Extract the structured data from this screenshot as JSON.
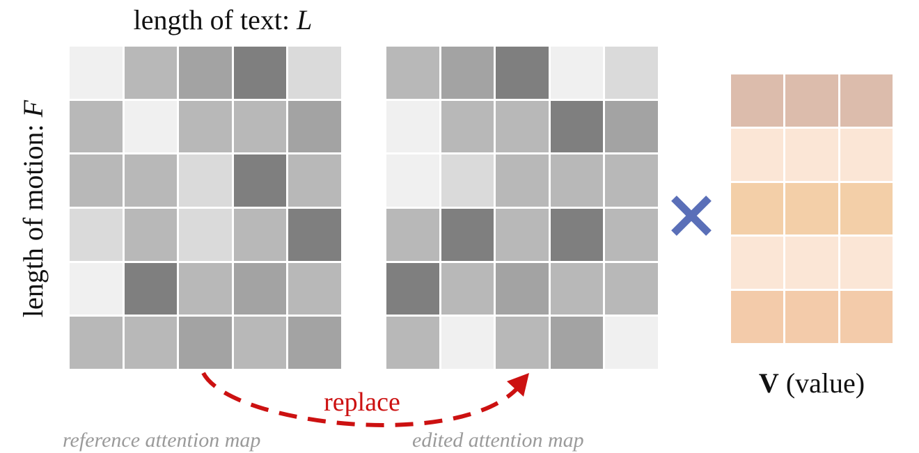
{
  "labels": {
    "text_length_prefix": "length of text: ",
    "text_length_var": "L",
    "motion_length_prefix": "length of motion: ",
    "motion_length_var": "F",
    "value_bold": "V",
    "value_rest": " (value)",
    "replace": "replace",
    "reference_caption": "reference attention map",
    "edited_caption": "edited attention map"
  },
  "colors": {
    "replace_arrow": "#cc1111",
    "times_symbol": "#5a6fb8"
  },
  "reference_map": [
    [
      "#f0f0f0",
      "#b8b8b8",
      "#a3a3a3",
      "#7f7f7f",
      "#dadada"
    ],
    [
      "#b8b8b8",
      "#f0f0f0",
      "#b8b8b8",
      "#b8b8b8",
      "#a3a3a3"
    ],
    [
      "#b8b8b8",
      "#b8b8b8",
      "#dadada",
      "#7f7f7f",
      "#b8b8b8"
    ],
    [
      "#dadada",
      "#b8b8b8",
      "#dadada",
      "#b8b8b8",
      "#7f7f7f"
    ],
    [
      "#f0f0f0",
      "#7f7f7f",
      "#b8b8b8",
      "#a3a3a3",
      "#b8b8b8"
    ],
    [
      "#b8b8b8",
      "#b8b8b8",
      "#a3a3a3",
      "#b8b8b8",
      "#a3a3a3"
    ]
  ],
  "edited_map": [
    [
      "#b8b8b8",
      "#a3a3a3",
      "#7f7f7f",
      "#f0f0f0",
      "#dadada"
    ],
    [
      "#f0f0f0",
      "#b8b8b8",
      "#b8b8b8",
      "#7f7f7f",
      "#a3a3a3"
    ],
    [
      "#f0f0f0",
      "#dadada",
      "#b8b8b8",
      "#b8b8b8",
      "#b8b8b8"
    ],
    [
      "#b8b8b8",
      "#7f7f7f",
      "#b8b8b8",
      "#7f7f7f",
      "#b8b8b8"
    ],
    [
      "#7f7f7f",
      "#b8b8b8",
      "#a3a3a3",
      "#b8b8b8",
      "#b8b8b8"
    ],
    [
      "#b8b8b8",
      "#f0f0f0",
      "#b8b8b8",
      "#a3a3a3",
      "#f0f0f0"
    ]
  ],
  "value_matrix": [
    [
      "#dcbcac",
      "#dcbcac",
      "#dcbcac"
    ],
    [
      "#fbe6d6",
      "#fbe6d6",
      "#fbe6d6"
    ],
    [
      "#f3cfa8",
      "#f3cfa8",
      "#f3cfa8"
    ],
    [
      "#fbe6d6",
      "#fbe6d6",
      "#fbe6d6"
    ],
    [
      "#f3cbaa",
      "#f3cbaa",
      "#f3cbaa"
    ]
  ]
}
